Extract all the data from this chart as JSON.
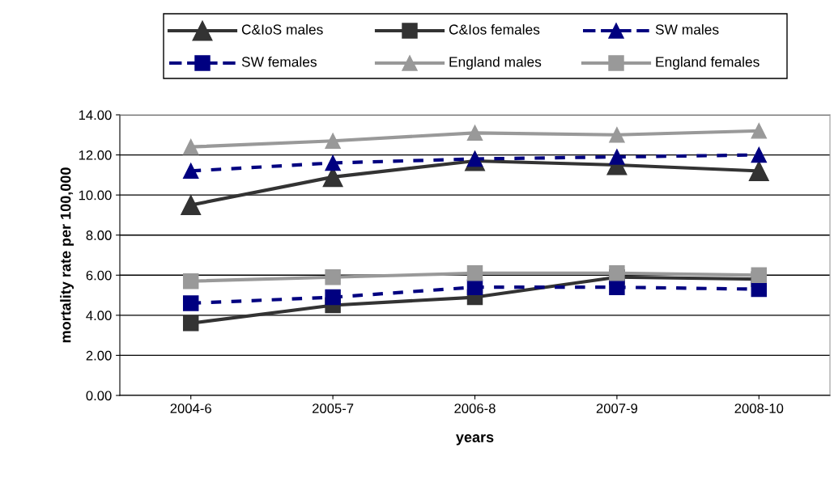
{
  "chart_data": {
    "type": "line",
    "xlabel": "years",
    "ylabel": "mortality rate per 100,000",
    "categories": [
      "2004-6",
      "2005-7",
      "2006-8",
      "2007-9",
      "2008-10"
    ],
    "series": [
      {
        "name": "C&IoS males",
        "color": "#333333",
        "marker": "triangle",
        "line_style": "solid",
        "values": [
          9.5,
          10.9,
          11.7,
          11.5,
          11.2
        ]
      },
      {
        "name": "C&Ios females",
        "color": "#333333",
        "marker": "square",
        "line_style": "solid",
        "values": [
          3.6,
          4.5,
          4.9,
          5.9,
          5.8
        ]
      },
      {
        "name": "SW males",
        "color": "#000080",
        "marker": "triangle",
        "line_style": "dashed",
        "values": [
          11.2,
          11.6,
          11.8,
          11.9,
          12.0
        ]
      },
      {
        "name": "SW females",
        "color": "#000080",
        "marker": "square",
        "line_style": "dashed",
        "values": [
          4.6,
          4.9,
          5.4,
          5.4,
          5.3
        ]
      },
      {
        "name": "England males",
        "color": "#999999",
        "marker": "triangle",
        "line_style": "solid",
        "values": [
          12.4,
          12.7,
          13.1,
          13.0,
          13.2
        ]
      },
      {
        "name": "England females",
        "color": "#999999",
        "marker": "square",
        "line_style": "solid",
        "values": [
          5.7,
          5.9,
          6.1,
          6.1,
          6.0
        ]
      }
    ],
    "ylim": [
      0,
      14
    ],
    "yticks": [
      {
        "value": 0,
        "label": "0.00"
      },
      {
        "value": 2,
        "label": "2.00"
      },
      {
        "value": 4,
        "label": "4.00"
      },
      {
        "value": 6,
        "label": "6.00"
      },
      {
        "value": 8,
        "label": "8.00"
      },
      {
        "value": 10,
        "label": "10.00"
      },
      {
        "value": 12,
        "label": "12.00"
      },
      {
        "value": 14,
        "label": "14.00"
      }
    ],
    "grid": "y",
    "legend": "top"
  }
}
